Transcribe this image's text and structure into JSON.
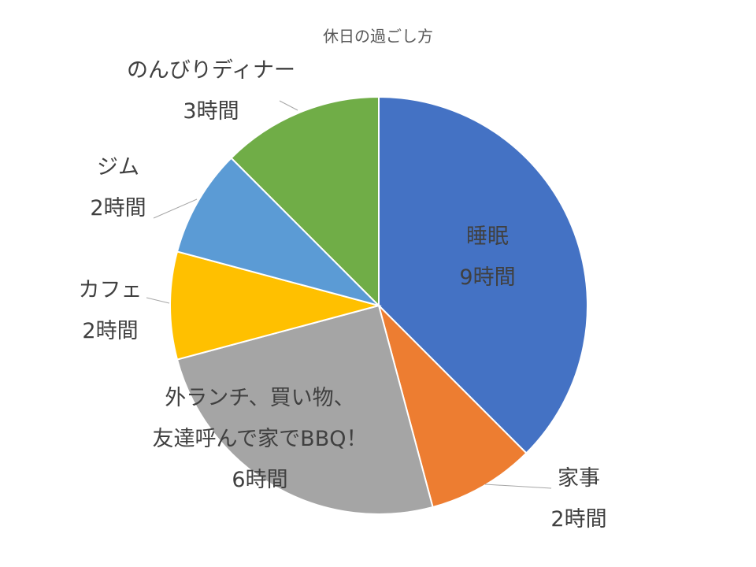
{
  "chart_data": {
    "type": "pie",
    "title": "休日の過ごし方",
    "categories": [
      "睡眠",
      "家事",
      "外ランチ、買い物、\n友達呼んで家でBBQ！",
      "カフェ",
      "ジム",
      "のんびりディナー"
    ],
    "values": [
      9,
      2,
      6,
      2,
      2,
      3
    ],
    "value_labels": [
      "9時間",
      "2時間",
      "6時間",
      "2時間",
      "2時間",
      "3時間"
    ],
    "colors": [
      "#4472c4",
      "#ed7d31",
      "#a5a5a5",
      "#ffc000",
      "#5b9bd5",
      "#70ad47"
    ]
  }
}
